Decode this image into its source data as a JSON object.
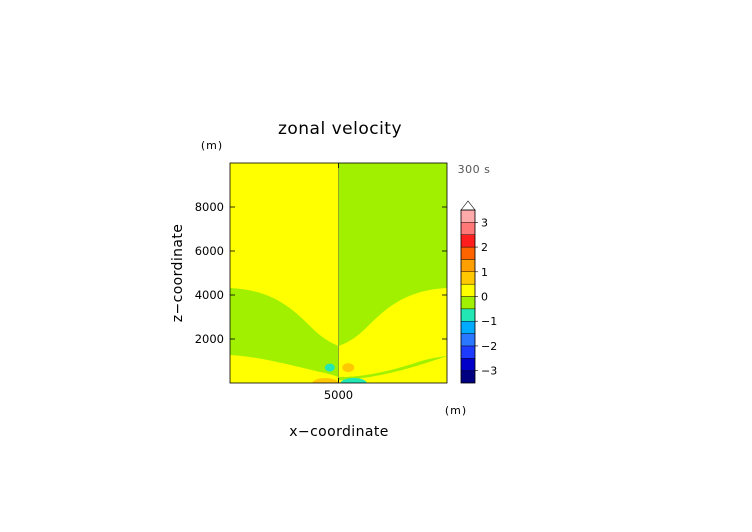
{
  "chart_data": {
    "type": "heatmap",
    "title": "zonal velocity",
    "xlabel": "x−coordinate",
    "ylabel": "z−coordinate",
    "x_unit": "(m)",
    "z_unit": "(m)",
    "time_label": "300 s",
    "xlim": [
      0,
      10000
    ],
    "zlim": [
      0,
      10000
    ],
    "x_ticks": [
      {
        "value": 5000,
        "label": "5000"
      }
    ],
    "z_ticks": [
      {
        "value": 2000,
        "label": "2000"
      },
      {
        "value": 4000,
        "label": "4000"
      },
      {
        "value": 6000,
        "label": "6000"
      },
      {
        "value": 8000,
        "label": "8000"
      }
    ],
    "colorbar": {
      "levels": [
        {
          "lo": -3.5,
          "hi": -3.0,
          "color": "#000080"
        },
        {
          "lo": -3.0,
          "hi": -2.5,
          "color": "#0000c8"
        },
        {
          "lo": -2.5,
          "hi": -2.0,
          "color": "#1e3cff"
        },
        {
          "lo": -2.0,
          "hi": -1.5,
          "color": "#2a78ff"
        },
        {
          "lo": -1.5,
          "hi": -1.0,
          "color": "#00aaff"
        },
        {
          "lo": -1.0,
          "hi": -0.5,
          "color": "#22e6b4"
        },
        {
          "lo": -0.5,
          "hi": 0.0,
          "color": "#a0f000"
        },
        {
          "lo": 0.0,
          "hi": 0.5,
          "color": "#ffff00"
        },
        {
          "lo": 0.5,
          "hi": 1.0,
          "color": "#ffc800"
        },
        {
          "lo": 1.0,
          "hi": 1.5,
          "color": "#ffa000"
        },
        {
          "lo": 1.5,
          "hi": 2.0,
          "color": "#ff6400"
        },
        {
          "lo": 2.0,
          "hi": 2.5,
          "color": "#ff1e1e"
        },
        {
          "lo": 2.5,
          "hi": 3.0,
          "color": "#ff7878"
        },
        {
          "lo": 3.0,
          "hi": 3.5,
          "color": "#ffaaaa"
        }
      ],
      "labels": [
        {
          "value": 3,
          "label": "3"
        },
        {
          "value": 2,
          "label": "2"
        },
        {
          "value": 1,
          "label": "1"
        },
        {
          "value": 0,
          "label": "0"
        },
        {
          "value": -1,
          "label": "−1"
        },
        {
          "value": -2,
          "label": "−2"
        },
        {
          "value": -3,
          "label": "−3"
        }
      ],
      "extend": "max"
    },
    "regions": [
      {
        "name": "negative-upper-right",
        "value_range": [
          -0.5,
          0.0
        ]
      },
      {
        "name": "positive-upper-left",
        "value_range": [
          0.0,
          0.5
        ]
      },
      {
        "name": "negative-middle-left",
        "value_range": [
          -0.5,
          0.0
        ]
      },
      {
        "name": "positive-middle-right",
        "value_range": [
          0.0,
          0.5
        ]
      },
      {
        "name": "negative-lower-band",
        "value_range": [
          -0.5,
          0.0
        ]
      },
      {
        "name": "positive-surface-left",
        "value_range": [
          0.0,
          0.5
        ]
      },
      {
        "name": "negative-surface-right",
        "value_range": [
          -0.5,
          0.0
        ]
      }
    ],
    "features": [
      {
        "name": "cyan-blob-left",
        "x": 4600,
        "z": 700,
        "value_range": [
          -1.0,
          -0.5
        ]
      },
      {
        "name": "orange-blob-right",
        "x": 5450,
        "z": 700,
        "value_range": [
          0.5,
          1.0
        ]
      },
      {
        "name": "orange-surface-left",
        "x": 4400,
        "z": 80,
        "value_range": [
          0.5,
          1.0
        ]
      },
      {
        "name": "cyan-surface-right",
        "x": 5700,
        "z": 80,
        "value_range": [
          -1.0,
          -0.5
        ]
      }
    ]
  }
}
